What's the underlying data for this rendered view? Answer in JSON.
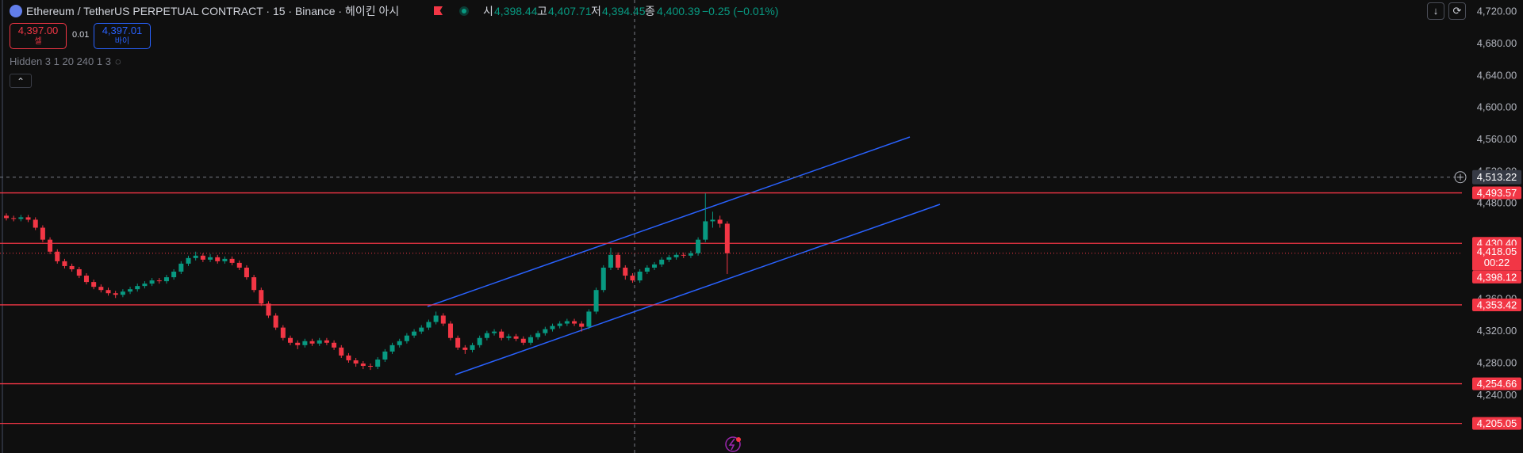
{
  "chart_data": {
    "type": "candlestick",
    "title": "Ethereum / TetherUS PERPETUAL CONTRACT · 15 · Binance · 헤이킨 아시",
    "ohlc_header": [
      {
        "label": "시",
        "value": "4,398.44"
      },
      {
        "label": "고",
        "value": "4,407.71"
      },
      {
        "label": "저",
        "value": "4,394.45"
      },
      {
        "label": "종",
        "value": "4,400.39"
      }
    ],
    "change": "−0.25 (−0.01%)",
    "trade": {
      "sell_price": "4,397.00",
      "sell": "셀",
      "spread": "0.01",
      "buy_price": "4,397.01",
      "buy": "바이"
    },
    "indicator": "Hidden 3 1 20 240 1 3",
    "up_color": "#089981",
    "down_color": "#f23645",
    "level_color": "#f23645",
    "grid": false,
    "ylim": [
      4168,
      4735
    ],
    "yticks": [
      {
        "value": 4720,
        "label": "4,720.00"
      },
      {
        "value": 4680,
        "label": "4,680.00"
      },
      {
        "value": 4640,
        "label": "4,640.00"
      },
      {
        "value": 4600,
        "label": "4,600.00"
      },
      {
        "value": 4560,
        "label": "4,560.00"
      },
      {
        "value": 4520,
        "label": "4,520.00"
      },
      {
        "value": 4480,
        "label": "4,480.00"
      },
      {
        "value": 4360,
        "label": "4,360.00"
      },
      {
        "value": 4320,
        "label": "4,320.00"
      },
      {
        "value": 4280,
        "label": "4,280.00"
      },
      {
        "value": 4240,
        "label": "4,240.00"
      }
    ],
    "levels": [
      {
        "value": 4493.57,
        "label": "4,493.57"
      },
      {
        "value": 4430.4,
        "label": "4,430.40"
      },
      {
        "value": 4353.42,
        "label": "4,353.42"
      },
      {
        "value": 4254.66,
        "label": "4,254.66"
      },
      {
        "value": 4205.05,
        "label": "4,205.05"
      }
    ],
    "crosshair": {
      "value": 4513.22,
      "label": "4,513.22"
    },
    "last_price": {
      "value": 4418.05,
      "label": "4,418.05"
    },
    "countdown": "00:22",
    "low_price": {
      "value": 4398.12,
      "label": "4,398.12"
    },
    "open": [
      4465,
      4462,
      4461,
      4463,
      4460,
      4450,
      4435,
      4420,
      4408,
      4402,
      4398,
      4390,
      4382,
      4376,
      4372,
      4368,
      4366,
      4370,
      4373,
      4377,
      4380,
      4384,
      4383,
      4388,
      4395,
      4405,
      4412,
      4415,
      4410,
      4413,
      4408,
      4411,
      4406,
      4400,
      4388,
      4372,
      4355,
      4340,
      4325,
      4312,
      4306,
      4303,
      4308,
      4305,
      4309,
      4306,
      4300,
      4290,
      4284,
      4280,
      4277,
      4276,
      4285,
      4295,
      4303,
      4308,
      4315,
      4320,
      4325,
      4332,
      4340,
      4330,
      4312,
      4300,
      4297,
      4303,
      4312,
      4318,
      4320,
      4312,
      4314,
      4311,
      4306,
      4313,
      4318,
      4323,
      4327,
      4330,
      4333,
      4330,
      4326,
      4345,
      4372,
      4400,
      4416,
      4400,
      4390,
      4384,
      4395,
      4400,
      4404,
      4410,
      4413,
      4416,
      4415,
      4418,
      4435,
      4458,
      4460,
      4455
    ],
    "high": [
      4468,
      4465,
      4466,
      4466,
      4463,
      4453,
      4438,
      4423,
      4411,
      4405,
      4401,
      4393,
      4385,
      4379,
      4375,
      4371,
      4373,
      4376,
      4380,
      4383,
      4387,
      4387,
      4391,
      4398,
      4408,
      4415,
      4420,
      4418,
      4417,
      4416,
      4414,
      4414,
      4409,
      4403,
      4391,
      4375,
      4358,
      4343,
      4328,
      4315,
      4309,
      4311,
      4311,
      4312,
      4312,
      4309,
      4303,
      4293,
      4287,
      4283,
      4280,
      4288,
      4298,
      4306,
      4311,
      4318,
      4323,
      4328,
      4335,
      4345,
      4343,
      4333,
      4315,
      4303,
      4306,
      4315,
      4321,
      4323,
      4323,
      4317,
      4317,
      4314,
      4316,
      4321,
      4326,
      4330,
      4333,
      4336,
      4336,
      4333,
      4348,
      4375,
      4403,
      4425,
      4419,
      4403,
      4393,
      4398,
      4403,
      4407,
      4413,
      4416,
      4419,
      4419,
      4421,
      4438,
      4493,
      4470,
      4465,
      4458
    ],
    "low": [
      4459,
      4458,
      4458,
      4457,
      4447,
      4432,
      4417,
      4405,
      4399,
      4395,
      4387,
      4379,
      4373,
      4369,
      4365,
      4362,
      4363,
      4367,
      4370,
      4374,
      4377,
      4380,
      4380,
      4385,
      4392,
      4402,
      4409,
      4407,
      4407,
      4405,
      4405,
      4403,
      4397,
      4385,
      4369,
      4352,
      4337,
      4322,
      4309,
      4303,
      4298,
      4300,
      4302,
      4302,
      4303,
      4297,
      4287,
      4281,
      4276,
      4273,
      4272,
      4273,
      4282,
      4292,
      4300,
      4305,
      4312,
      4317,
      4322,
      4329,
      4327,
      4309,
      4297,
      4292,
      4294,
      4300,
      4309,
      4315,
      4309,
      4309,
      4308,
      4303,
      4303,
      4310,
      4315,
      4320,
      4324,
      4327,
      4327,
      4320,
      4323,
      4342,
      4369,
      4397,
      4397,
      4385,
      4381,
      4381,
      4392,
      4397,
      4401,
      4407,
      4410,
      4412,
      4412,
      4415,
      4432,
      4450,
      4450,
      4392
    ],
    "close": [
      4462,
      4461,
      4463,
      4460,
      4450,
      4435,
      4420,
      4408,
      4402,
      4398,
      4390,
      4382,
      4376,
      4372,
      4368,
      4366,
      4370,
      4373,
      4377,
      4380,
      4384,
      4383,
      4388,
      4395,
      4405,
      4412,
      4415,
      4410,
      4413,
      4408,
      4411,
      4406,
      4400,
      4388,
      4372,
      4355,
      4340,
      4325,
      4312,
      4306,
      4303,
      4308,
      4305,
      4309,
      4306,
      4300,
      4290,
      4284,
      4280,
      4277,
      4276,
      4285,
      4295,
      4303,
      4308,
      4315,
      4320,
      4325,
      4332,
      4340,
      4330,
      4312,
      4300,
      4297,
      4303,
      4312,
      4318,
      4320,
      4312,
      4314,
      4311,
      4306,
      4313,
      4318,
      4323,
      4327,
      4330,
      4333,
      4330,
      4326,
      4345,
      4372,
      4400,
      4416,
      4400,
      4390,
      4384,
      4395,
      4400,
      4404,
      4410,
      4413,
      4416,
      4415,
      4418,
      4435,
      4458,
      4460,
      4455,
      4418
    ]
  }
}
